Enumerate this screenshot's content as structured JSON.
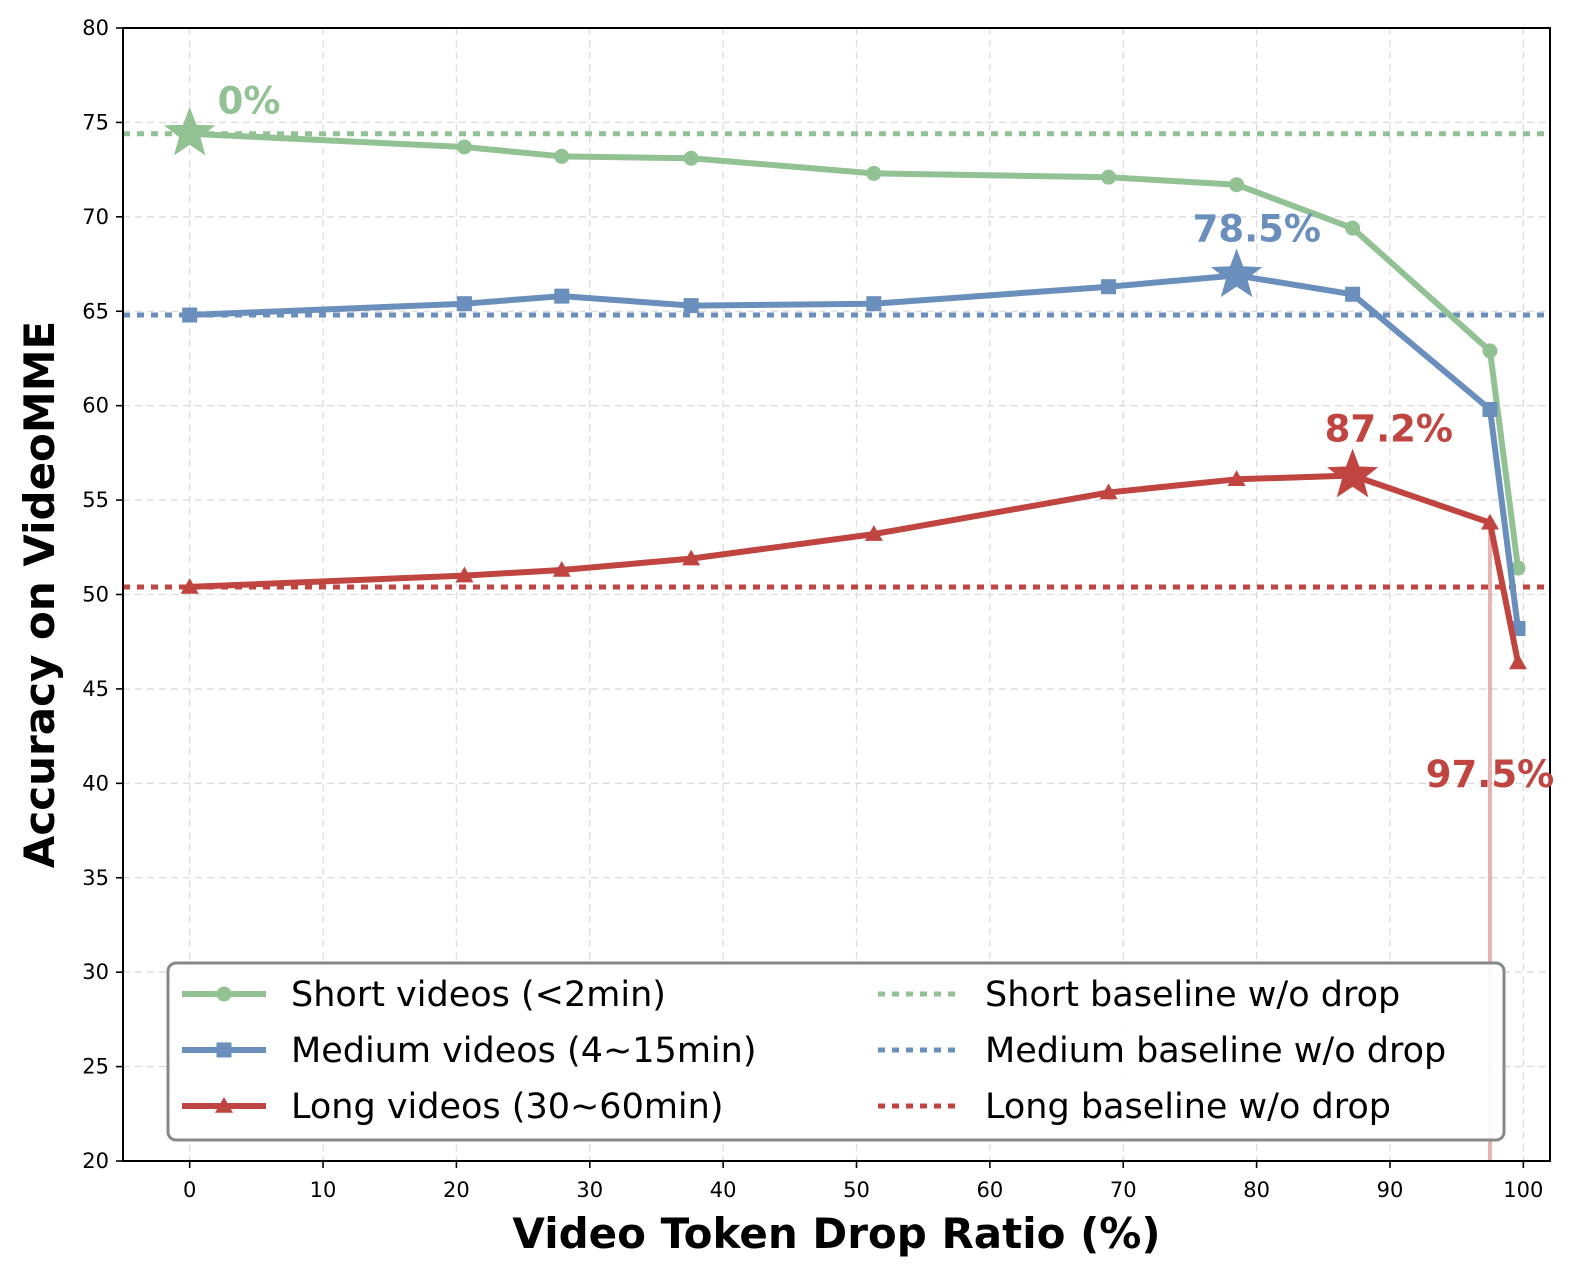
{
  "chart_data": {
    "type": "line",
    "title": "",
    "xlabel": "Video Token Drop Ratio (%)",
    "ylabel": "Accuracy on VideoMME",
    "xlim": [
      -5,
      102
    ],
    "ylim": [
      20,
      80
    ],
    "xticks": [
      0,
      10,
      20,
      30,
      40,
      50,
      60,
      70,
      80,
      90,
      100
    ],
    "yticks": [
      20,
      25,
      30,
      35,
      40,
      45,
      50,
      55,
      60,
      65,
      70,
      75,
      80
    ],
    "grid": true,
    "legend_position": "lower-center",
    "x": [
      0,
      20.6,
      27.9,
      37.6,
      51.3,
      68.9,
      78.5,
      87.2,
      97.5,
      99.6
    ],
    "series": [
      {
        "name": "Short videos (<2min)",
        "color": "#92c294",
        "marker": "circle",
        "values": [
          74.4,
          73.7,
          73.2,
          73.1,
          72.3,
          72.1,
          71.7,
          69.4,
          62.9,
          51.4
        ]
      },
      {
        "name": "Medium videos (4~15min)",
        "color": "#6a8fbd",
        "marker": "square",
        "values": [
          64.8,
          65.4,
          65.8,
          65.3,
          65.4,
          66.3,
          66.9,
          65.9,
          59.8,
          48.2
        ]
      },
      {
        "name": "Long videos (30~60min)",
        "color": "#c0443f",
        "marker": "triangle",
        "values": [
          50.4,
          51.0,
          51.3,
          51.9,
          53.2,
          55.4,
          56.1,
          56.3,
          53.8,
          46.4
        ]
      }
    ],
    "baselines": [
      {
        "name": "Short baseline w/o drop",
        "color": "#92c294",
        "value": 74.4
      },
      {
        "name": "Medium baseline w/o drop",
        "color": "#6a8fbd",
        "value": 64.8
      },
      {
        "name": "Long baseline w/o drop",
        "color": "#c0443f",
        "value": 50.4
      }
    ],
    "stars": [
      {
        "series": 0,
        "x": 0,
        "y": 74.4,
        "label": "0%"
      },
      {
        "series": 1,
        "x": 78.5,
        "y": 66.9,
        "label": "78.5%"
      },
      {
        "series": 2,
        "x": 87.2,
        "y": 56.3,
        "label": "87.2%"
      }
    ],
    "vline": {
      "x": 97.5,
      "label": "97.5%",
      "color": "#c0443f"
    }
  }
}
